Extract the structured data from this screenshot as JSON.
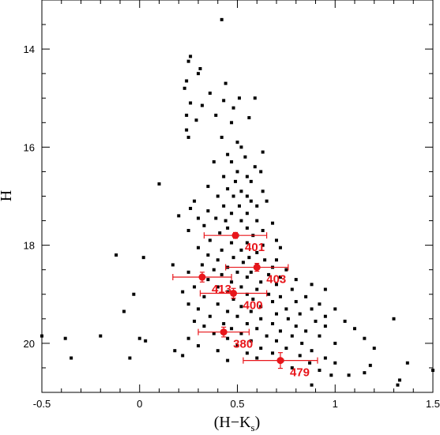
{
  "chart_data": {
    "type": "scatter",
    "xlabel": "(H−K",
    "xlabel_sub": "s",
    "xlabel_close": ")",
    "ylabel": "H",
    "xlim": [
      -0.5,
      1.5
    ],
    "ylim": [
      21.0,
      13.0
    ],
    "y_inverted": true,
    "x_ticks": [
      "-0.5",
      "0",
      "0.5",
      "1",
      "1.5"
    ],
    "x_tick_values": [
      -0.5,
      0,
      0.5,
      1,
      1.5
    ],
    "y_ticks": [
      "14",
      "16",
      "18",
      "20"
    ],
    "y_tick_values": [
      14,
      16,
      18,
      20
    ],
    "grid": false,
    "colors": {
      "points": "#000000",
      "highlight": "#e8161b"
    },
    "series": [
      {
        "marker": "square",
        "points": [
          [
            0.42,
            13.4
          ],
          [
            0.26,
            14.15
          ],
          [
            0.25,
            14.25
          ],
          [
            0.31,
            14.4
          ],
          [
            0.44,
            14.7
          ],
          [
            0.3,
            14.5
          ],
          [
            0.24,
            14.65
          ],
          [
            0.23,
            14.8
          ],
          [
            0.36,
            14.9
          ],
          [
            0.26,
            15.1
          ],
          [
            0.43,
            15.05
          ],
          [
            0.48,
            15.2
          ],
          [
            0.51,
            15.0
          ],
          [
            0.59,
            15.0
          ],
          [
            0.32,
            15.15
          ],
          [
            0.39,
            15.35
          ],
          [
            0.24,
            15.35
          ],
          [
            0.29,
            15.45
          ],
          [
            0.47,
            15.5
          ],
          [
            0.56,
            15.4
          ],
          [
            0.24,
            15.65
          ],
          [
            0.25,
            15.8
          ],
          [
            0.42,
            15.8
          ],
          [
            0.5,
            15.9
          ],
          [
            0.52,
            16.0
          ],
          [
            0.45,
            16.15
          ],
          [
            0.54,
            16.2
          ],
          [
            0.63,
            16.1
          ],
          [
            0.38,
            16.3
          ],
          [
            0.47,
            16.3
          ],
          [
            0.59,
            16.4
          ],
          [
            0.5,
            16.5
          ],
          [
            0.43,
            16.6
          ],
          [
            0.55,
            16.6
          ],
          [
            0.62,
            16.5
          ],
          [
            0.49,
            16.7
          ],
          [
            0.57,
            16.7
          ],
          [
            0.1,
            16.75
          ],
          [
            0.35,
            16.8
          ],
          [
            0.45,
            16.85
          ],
          [
            0.52,
            16.9
          ],
          [
            0.63,
            16.9
          ],
          [
            0.4,
            17.0
          ],
          [
            0.48,
            17.0
          ],
          [
            0.55,
            17.0
          ],
          [
            0.28,
            17.1
          ],
          [
            0.57,
            17.1
          ],
          [
            0.65,
            17.1
          ],
          [
            0.43,
            17.2
          ],
          [
            0.51,
            17.2
          ],
          [
            0.6,
            17.2
          ],
          [
            0.26,
            17.25
          ],
          [
            0.35,
            17.3
          ],
          [
            0.47,
            17.35
          ],
          [
            0.55,
            17.35
          ],
          [
            0.2,
            17.4
          ],
          [
            0.3,
            17.45
          ],
          [
            0.39,
            17.45
          ],
          [
            0.44,
            17.5
          ],
          [
            0.52,
            17.5
          ],
          [
            0.6,
            17.5
          ],
          [
            0.68,
            17.55
          ],
          [
            0.33,
            17.6
          ],
          [
            0.45,
            17.65
          ],
          [
            0.55,
            17.65
          ],
          [
            0.63,
            17.7
          ],
          [
            0.25,
            17.7
          ],
          [
            0.41,
            17.75
          ],
          [
            0.5,
            17.8
          ],
          [
            0.58,
            17.8
          ],
          [
            0.7,
            17.9
          ],
          [
            0.36,
            17.9
          ],
          [
            0.47,
            17.95
          ],
          [
            0.55,
            17.95
          ],
          [
            0.63,
            18.0
          ],
          [
            0.72,
            18.05
          ],
          [
            0.3,
            18.05
          ],
          [
            0.42,
            18.1
          ],
          [
            0.52,
            18.1
          ],
          [
            0.6,
            18.15
          ],
          [
            0.35,
            18.2
          ],
          [
            0.48,
            18.25
          ],
          [
            0.56,
            18.25
          ],
          [
            0.64,
            18.3
          ],
          [
            -0.12,
            18.2
          ],
          [
            0.02,
            18.25
          ],
          [
            0.4,
            18.3
          ],
          [
            0.53,
            18.35
          ],
          [
            0.7,
            18.3
          ],
          [
            0.32,
            18.4
          ],
          [
            0.45,
            18.45
          ],
          [
            0.6,
            18.4
          ],
          [
            0.68,
            18.45
          ],
          [
            0.75,
            18.5
          ],
          [
            0.17,
            18.4
          ],
          [
            0.38,
            18.5
          ],
          [
            0.5,
            18.55
          ],
          [
            0.57,
            18.55
          ],
          [
            0.66,
            18.6
          ],
          [
            0.25,
            18.55
          ],
          [
            0.42,
            18.6
          ],
          [
            0.55,
            18.65
          ],
          [
            0.72,
            18.65
          ],
          [
            0.8,
            18.7
          ],
          [
            0.35,
            18.7
          ],
          [
            0.47,
            18.75
          ],
          [
            0.62,
            18.75
          ],
          [
            0.7,
            18.8
          ],
          [
            0.88,
            18.8
          ],
          [
            0.28,
            18.85
          ],
          [
            0.4,
            18.85
          ],
          [
            0.52,
            18.85
          ],
          [
            0.6,
            18.9
          ],
          [
            0.78,
            18.9
          ],
          [
            0.95,
            18.9
          ],
          [
            0.22,
            18.95
          ],
          [
            0.45,
            18.95
          ],
          [
            0.55,
            19.0
          ],
          [
            0.66,
            19.0
          ],
          [
            0.72,
            19.05
          ],
          [
            0.85,
            19.05
          ],
          [
            0.33,
            19.05
          ],
          [
            0.48,
            19.1
          ],
          [
            0.58,
            19.1
          ],
          [
            0.68,
            19.15
          ],
          [
            0.8,
            19.15
          ],
          [
            0.92,
            19.2
          ],
          [
            -0.03,
            19.0
          ],
          [
            0.25,
            19.2
          ],
          [
            0.4,
            19.2
          ],
          [
            0.52,
            19.25
          ],
          [
            0.62,
            19.25
          ],
          [
            0.75,
            19.3
          ],
          [
            0.88,
            19.3
          ],
          [
            1.0,
            19.3
          ],
          [
            0.3,
            19.3
          ],
          [
            0.45,
            19.35
          ],
          [
            0.57,
            19.35
          ],
          [
            0.7,
            19.4
          ],
          [
            0.82,
            19.4
          ],
          [
            0.95,
            19.45
          ],
          [
            -0.08,
            19.35
          ],
          [
            0.36,
            19.45
          ],
          [
            0.5,
            19.45
          ],
          [
            0.62,
            19.5
          ],
          [
            0.76,
            19.5
          ],
          [
            0.9,
            19.55
          ],
          [
            1.05,
            19.55
          ],
          [
            0.28,
            19.55
          ],
          [
            0.43,
            19.6
          ],
          [
            0.55,
            19.6
          ],
          [
            0.68,
            19.6
          ],
          [
            0.8,
            19.65
          ],
          [
            0.95,
            19.65
          ],
          [
            1.1,
            19.7
          ],
          [
            0.33,
            19.65
          ],
          [
            0.47,
            19.7
          ],
          [
            0.6,
            19.7
          ],
          [
            0.72,
            19.75
          ],
          [
            0.85,
            19.75
          ],
          [
            1.3,
            19.5
          ],
          [
            0.38,
            19.8
          ],
          [
            0.52,
            19.8
          ],
          [
            0.65,
            19.85
          ],
          [
            0.78,
            19.85
          ],
          [
            0.92,
            19.85
          ],
          [
            1.15,
            19.9
          ],
          [
            0.25,
            19.9
          ],
          [
            0.45,
            19.9
          ],
          [
            0.57,
            19.95
          ],
          [
            0.7,
            19.95
          ],
          [
            0.83,
            20.0
          ],
          [
            1.0,
            20.0
          ],
          [
            -0.5,
            19.85
          ],
          [
            -0.38,
            19.9
          ],
          [
            -0.2,
            19.85
          ],
          [
            0.0,
            19.9
          ],
          [
            0.03,
            19.95
          ],
          [
            0.3,
            20.05
          ],
          [
            0.5,
            20.05
          ],
          [
            0.62,
            20.1
          ],
          [
            0.75,
            20.1
          ],
          [
            0.88,
            20.15
          ],
          [
            1.2,
            20.1
          ],
          [
            0.18,
            20.15
          ],
          [
            0.4,
            20.15
          ],
          [
            0.55,
            20.2
          ],
          [
            0.68,
            20.2
          ],
          [
            0.82,
            20.25
          ],
          [
            0.95,
            20.3
          ],
          [
            -0.35,
            20.3
          ],
          [
            -0.05,
            20.3
          ],
          [
            0.22,
            20.25
          ],
          [
            0.6,
            20.3
          ],
          [
            0.73,
            20.35
          ],
          [
            0.87,
            20.4
          ],
          [
            1.0,
            20.4
          ],
          [
            1.18,
            20.45
          ],
          [
            1.37,
            20.4
          ],
          [
            0.45,
            20.35
          ],
          [
            0.78,
            20.5
          ],
          [
            0.92,
            20.55
          ],
          [
            1.07,
            20.65
          ],
          [
            1.15,
            20.6
          ],
          [
            1.5,
            20.55
          ],
          [
            1.33,
            20.75
          ],
          [
            1.32,
            20.85
          ],
          [
            0.88,
            20.85
          ],
          [
            0.98,
            20.65
          ]
        ]
      },
      {
        "marker": "circle",
        "points": [
          {
            "label": "401",
            "x": 0.49,
            "y": 17.8,
            "xerr": 0.16,
            "yerr": 0.06
          },
          {
            "label": "403",
            "x": 0.6,
            "y": 18.45,
            "xerr": 0.16,
            "yerr": 0.08
          },
          {
            "label": "413",
            "x": 0.32,
            "y": 18.65,
            "xerr": 0.15,
            "yerr": 0.1
          },
          {
            "label": "400",
            "x": 0.48,
            "y": 18.98,
            "xerr": 0.17,
            "yerr": 0.1
          },
          {
            "label": "380",
            "x": 0.43,
            "y": 19.77,
            "xerr": 0.13,
            "yerr": 0.1
          },
          {
            "label": "479",
            "x": 0.72,
            "y": 20.35,
            "xerr": 0.19,
            "yerr": 0.16
          }
        ]
      }
    ]
  }
}
